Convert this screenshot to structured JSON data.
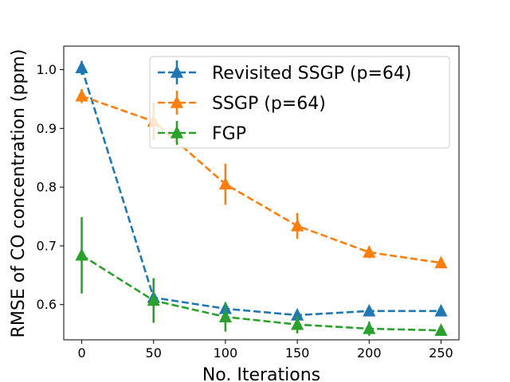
{
  "chart_data": {
    "type": "line",
    "title": "",
    "xlabel": "No. Iterations",
    "ylabel": "RMSE of CO concentration (ppm)",
    "x": [
      0,
      50,
      100,
      150,
      200,
      250
    ],
    "xticks": [
      0,
      50,
      100,
      150,
      200,
      250
    ],
    "xtick_labels": [
      "0",
      "50",
      "100",
      "150",
      "200",
      "250"
    ],
    "yticks": [
      0.6,
      0.7,
      0.8,
      0.9,
      1.0
    ],
    "ytick_labels": [
      "0.6",
      "0.7",
      "0.8",
      "0.9",
      "1.0"
    ],
    "xlim": [
      -12.5,
      262.5
    ],
    "ylim": [
      0.54,
      1.04
    ],
    "grid": false,
    "legend_position": "top-right",
    "series": [
      {
        "name": "Revisited SSGP (p=64)",
        "color": "#1f77b4",
        "marker": "triangle-up",
        "linestyle": "dashed",
        "values": [
          1.003,
          0.612,
          0.593,
          0.582,
          0.589,
          0.589
        ],
        "errors": [
          0.012,
          0.006,
          0.007,
          0.004,
          0.004,
          0.004
        ]
      },
      {
        "name": "SSGP (p=64)",
        "color": "#ff7f0e",
        "marker": "triangle-up",
        "linestyle": "dashed",
        "values": [
          0.955,
          0.912,
          0.805,
          0.734,
          0.689,
          0.671
        ],
        "errors": [
          0.012,
          0.032,
          0.035,
          0.022,
          0.01,
          0.004
        ]
      },
      {
        "name": "FGP",
        "color": "#2ca02c",
        "marker": "triangle-up",
        "linestyle": "dashed",
        "values": [
          0.684,
          0.607,
          0.579,
          0.566,
          0.559,
          0.556
        ],
        "errors": [
          0.065,
          0.038,
          0.025,
          0.015,
          0.012,
          0.006
        ]
      }
    ]
  }
}
